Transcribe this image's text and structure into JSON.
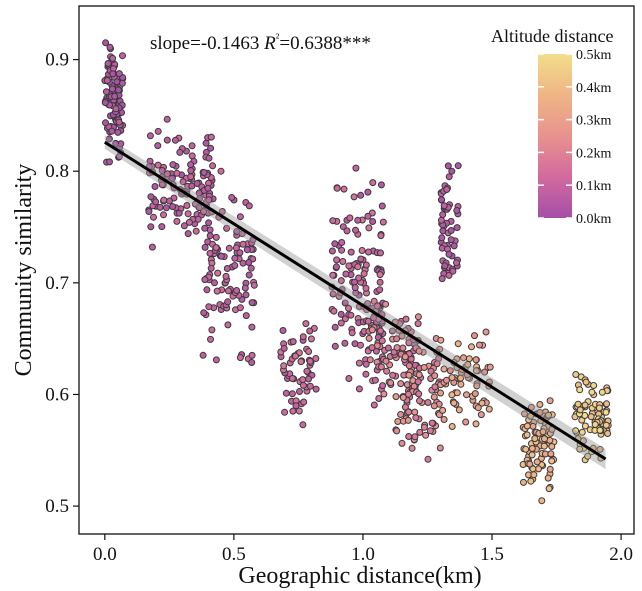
{
  "chart_data": {
    "type": "scatter",
    "annotation": {
      "text": "slope=-0.1463 R²=0.6388***",
      "slope_label": "slope=-0.1463 ",
      "r2_label": "R",
      "r2_sup": "²",
      "r2_value": "=0.6388***"
    },
    "xlabel": "Geographic distance(km)",
    "ylabel": "Community similarity",
    "xlim": [
      -0.1,
      2.05
    ],
    "ylim": [
      0.475,
      0.948
    ],
    "xticks": [
      0.0,
      0.5,
      1.0,
      1.5,
      2.0
    ],
    "xtick_labels": [
      "0.0",
      "0.5",
      "1.0",
      "1.5",
      "2.0"
    ],
    "yticks": [
      0.5,
      0.6,
      0.7,
      0.8,
      0.9
    ],
    "ytick_labels": [
      "0.5",
      "0.6",
      "0.7",
      "0.8",
      "0.9"
    ],
    "regression": {
      "slope": -0.1463,
      "intercept": 0.826,
      "x_range": [
        0.0,
        1.94
      ],
      "r2": 0.6388,
      "ci_band": true
    },
    "legend": {
      "title": "Altitude distance",
      "position": "top-right",
      "ticks": [
        "0.0km",
        "0.1km",
        "0.2km",
        "0.3km",
        "0.4km",
        "0.5km"
      ],
      "range": [
        0.0,
        0.5
      ],
      "colors": [
        "#A54FA8",
        "#D26A9E",
        "#E8928F",
        "#EFB585",
        "#F3DE8A"
      ]
    },
    "point_stroke": "#3a3a3a",
    "clusters": [
      {
        "x": [
          0.0,
          0.07
        ],
        "y": [
          0.79,
          0.935
        ],
        "n": 110,
        "alt": [
          0.0,
          0.08
        ]
      },
      {
        "x": [
          0.17,
          0.42
        ],
        "y": [
          0.72,
          0.855
        ],
        "n": 130,
        "alt": [
          0.03,
          0.13
        ]
      },
      {
        "x": [
          0.38,
          0.58
        ],
        "y": [
          0.6,
          0.82
        ],
        "n": 110,
        "alt": [
          0.04,
          0.14
        ]
      },
      {
        "x": [
          0.68,
          0.82
        ],
        "y": [
          0.56,
          0.69
        ],
        "n": 60,
        "alt": [
          0.06,
          0.17
        ]
      },
      {
        "x": [
          0.88,
          1.08
        ],
        "y": [
          0.57,
          0.82
        ],
        "n": 140,
        "alt": [
          0.04,
          0.16
        ]
      },
      {
        "x": [
          1.0,
          1.22
        ],
        "y": [
          0.575,
          0.7
        ],
        "n": 90,
        "alt": [
          0.1,
          0.24
        ]
      },
      {
        "x": [
          1.12,
          1.3
        ],
        "y": [
          0.52,
          0.68
        ],
        "n": 90,
        "alt": [
          0.14,
          0.28
        ]
      },
      {
        "x": [
          1.3,
          1.37
        ],
        "y": [
          0.68,
          0.818
        ],
        "n": 60,
        "alt": [
          0.02,
          0.1
        ]
      },
      {
        "x": [
          1.3,
          1.5
        ],
        "y": [
          0.56,
          0.665
        ],
        "n": 70,
        "alt": [
          0.24,
          0.38
        ]
      },
      {
        "x": [
          1.62,
          1.74
        ],
        "y": [
          0.495,
          0.62
        ],
        "n": 90,
        "alt": [
          0.3,
          0.42
        ]
      },
      {
        "x": [
          1.82,
          1.95
        ],
        "y": [
          0.52,
          0.642
        ],
        "n": 80,
        "alt": [
          0.38,
          0.5
        ]
      }
    ]
  }
}
